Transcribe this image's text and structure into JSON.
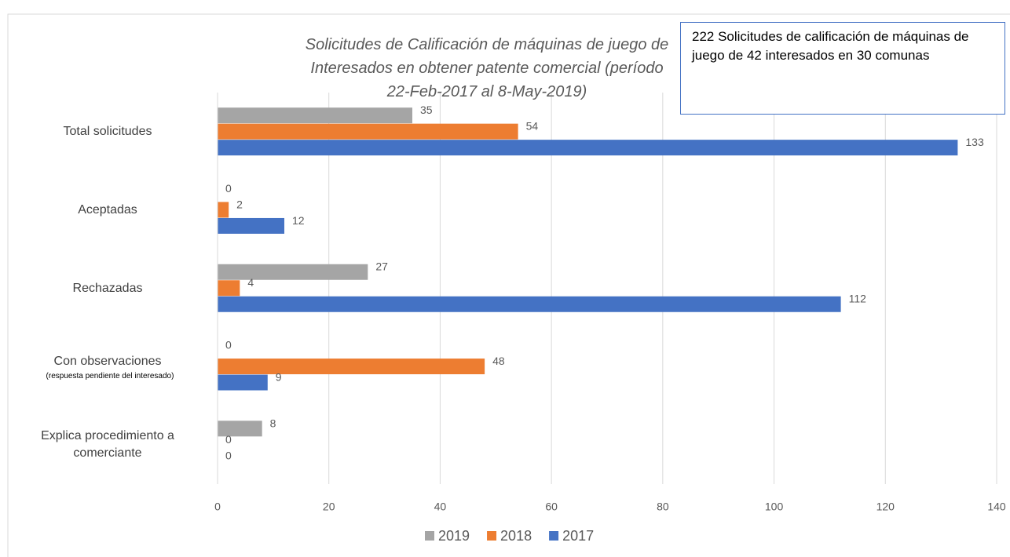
{
  "chart_data": {
    "type": "bar",
    "orientation": "horizontal",
    "title": "Solicitudes de Calificación de máquinas de juego de Interesados en obtener patente comercial (período 22-Feb-2017 al 8-May-2019)",
    "annotation": "222 Solicitudes de calificación de máquinas de juego de 42 interesados en 30 comunas",
    "categories": [
      "Total solicitudes",
      "Aceptadas",
      "Rechazadas",
      "Con observaciones",
      "Explica procedimiento a comerciante"
    ],
    "category_sublabels": [
      null,
      null,
      null,
      "(respuesta pendiente del interesado)",
      null
    ],
    "series": [
      {
        "name": "2019",
        "color": "#a5a5a5",
        "values": [
          35,
          0,
          27,
          0,
          8
        ]
      },
      {
        "name": "2018",
        "color": "#ed7d31",
        "values": [
          54,
          2,
          4,
          48,
          0
        ]
      },
      {
        "name": "2017",
        "color": "#4472c4",
        "values": [
          133,
          12,
          112,
          9,
          0
        ]
      }
    ],
    "xlim": [
      0,
      140
    ],
    "xticks": [
      0,
      20,
      40,
      60,
      80,
      100,
      120,
      140
    ],
    "grid": true,
    "legend": "bottom"
  }
}
